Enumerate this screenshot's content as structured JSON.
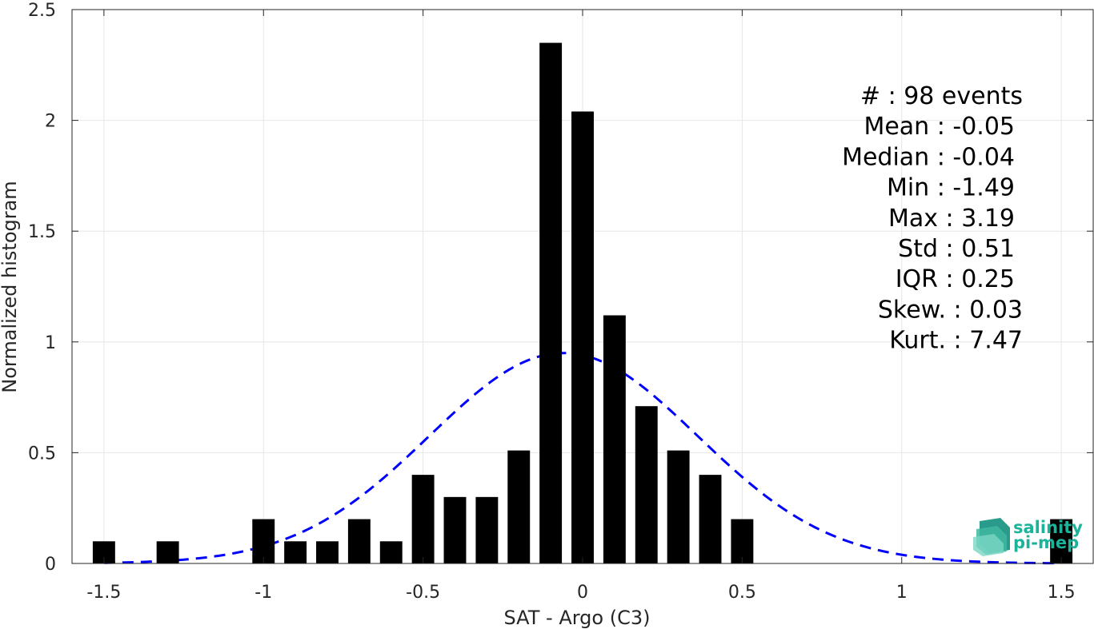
{
  "chart_data": {
    "type": "bar",
    "xlabel": "SAT - Argo (C3)",
    "ylabel": "Normalized histogram",
    "xlim": [
      -1.6,
      1.6
    ],
    "ylim": [
      0,
      2.5
    ],
    "xticks": [
      -1.5,
      -1,
      -0.5,
      0,
      0.5,
      1,
      1.5
    ],
    "xtick_labels": [
      "-1.5",
      "-1",
      "-0.5",
      "0",
      "0.5",
      "1",
      "1.5"
    ],
    "yticks": [
      0,
      0.5,
      1,
      1.5,
      2,
      2.5
    ],
    "ytick_labels": [
      "0",
      "0.5",
      "1",
      "1.5",
      "2",
      "2.5"
    ],
    "grid": true,
    "bar_color": "#000000",
    "bar_width": 0.07,
    "bars": [
      {
        "x": -1.5,
        "y": 0.1
      },
      {
        "x": -1.3,
        "y": 0.1
      },
      {
        "x": -1.0,
        "y": 0.2
      },
      {
        "x": -0.9,
        "y": 0.1
      },
      {
        "x": -0.8,
        "y": 0.1
      },
      {
        "x": -0.7,
        "y": 0.2
      },
      {
        "x": -0.6,
        "y": 0.1
      },
      {
        "x": -0.5,
        "y": 0.4
      },
      {
        "x": -0.4,
        "y": 0.3
      },
      {
        "x": -0.3,
        "y": 0.3
      },
      {
        "x": -0.2,
        "y": 0.51
      },
      {
        "x": -0.1,
        "y": 2.35
      },
      {
        "x": 0.0,
        "y": 2.04
      },
      {
        "x": 0.1,
        "y": 1.12
      },
      {
        "x": 0.2,
        "y": 0.71
      },
      {
        "x": 0.3,
        "y": 0.51
      },
      {
        "x": 0.4,
        "y": 0.4
      },
      {
        "x": 0.5,
        "y": 0.2
      },
      {
        "x": 1.5,
        "y": 0.2
      }
    ],
    "fit_curve": {
      "type": "gaussian",
      "mean": -0.06,
      "std": 0.42,
      "color": "#0000ff",
      "style": "dashed"
    },
    "annotations": [
      "#  : 98 events",
      "Mean : -0.05",
      "Median : -0.04",
      "Min : -1.49",
      "Max : 3.19",
      "Std : 0.51",
      "IQR : 0.25",
      "Skew. : 0.03",
      "Kurt. : 7.47"
    ]
  },
  "logo": {
    "line1": "salinity",
    "line2": "pi-mep",
    "color": "#1bb39a"
  }
}
